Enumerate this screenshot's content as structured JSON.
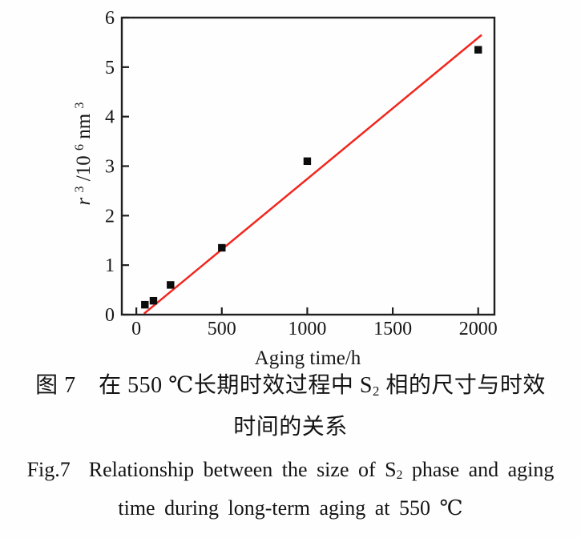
{
  "chart_data": {
    "type": "scatter",
    "title": "",
    "xlabel": "Aging time/h",
    "ylabel": "r^3/10^6 nm^3",
    "ylabel_parts": {
      "r": "r",
      "sup1": "3",
      "mid": "/10",
      "sup2": "6",
      "nm": "nm",
      "sup3": "3"
    },
    "x": [
      50,
      100,
      200,
      500,
      1000,
      2000
    ],
    "y": [
      0.2,
      0.28,
      0.6,
      1.35,
      3.1,
      5.35
    ],
    "fit_line": {
      "x1": 45,
      "y1": 0.02,
      "x2": 2020,
      "y2": 5.65
    },
    "x_ticks": [
      0,
      500,
      1000,
      1500,
      2000
    ],
    "y_ticks": [
      0,
      1,
      2,
      3,
      4,
      5,
      6
    ],
    "xlim": [
      -85,
      2095
    ],
    "ylim": [
      0,
      6
    ],
    "grid": false,
    "legend": "none",
    "marker_shape": "square",
    "marker_color": "#0c0c0c",
    "line_color": "#f2261e",
    "frame_color": "#1f1f1f"
  },
  "caption": {
    "zh_line1_pre": "图 7　在 550 ℃长期时效过程中 S",
    "zh_line1_sub": "2",
    "zh_line1_post": " 相的尺寸与时效",
    "zh_line2": "时间的关系",
    "en_line1_pre": "Fig.7  Relationship between the size of S",
    "en_line1_sub": "2",
    "en_line1_post": " phase and aging",
    "en_line2": "time during long-term aging at 550 ℃"
  }
}
